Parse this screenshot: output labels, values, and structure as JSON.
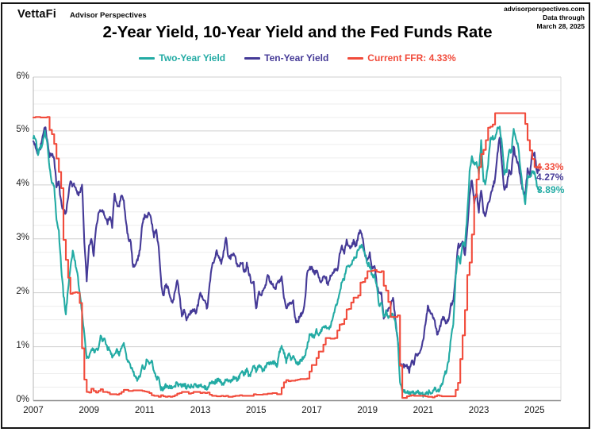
{
  "header": {
    "logo_text": "VettaFi",
    "logo_sub": "Advisor Perspectives",
    "source_line1": "advisorperspectives.com",
    "source_line2": "Data through",
    "source_line3": "March 28, 2025"
  },
  "title": "2-Year Yield, 10-Year Yield and the Fed Funds Rate",
  "chart_data": {
    "type": "line",
    "title": "2-Year Yield, 10-Year Yield and the Fed Funds Rate",
    "xlabel": "",
    "ylabel": "",
    "x_start": "2007-01",
    "x_end": "2025-03",
    "frequency": "monthly",
    "ylim": [
      0,
      6
    ],
    "y_ticks": [
      "0%",
      "1%",
      "2%",
      "3%",
      "4%",
      "5%",
      "6%"
    ],
    "y_tick_values": [
      0,
      1,
      2,
      3,
      4,
      5,
      6
    ],
    "minor_y_step": 0.25,
    "x_ticks": [
      "2007",
      "2009",
      "2011",
      "2013",
      "2015",
      "2017",
      "2019",
      "2021",
      "2023",
      "2025"
    ],
    "x_tick_years": [
      2007,
      2009,
      2011,
      2013,
      2015,
      2017,
      2019,
      2021,
      2023,
      2025
    ],
    "grid": "horizontal-only",
    "legend_position": "top",
    "series": [
      {
        "name": "Two-Year Yield",
        "color": "#23ABA4",
        "style": "line",
        "values": [
          4.88,
          4.85,
          4.57,
          4.67,
          4.77,
          4.98,
          4.82,
          4.31,
          4.01,
          3.97,
          3.34,
          3.12,
          2.48,
          1.97,
          1.62,
          2.05,
          2.45,
          2.77,
          2.57,
          2.36,
          2.0,
          1.61,
          1.21,
          0.82,
          0.81,
          0.98,
          0.93,
          0.93,
          0.93,
          1.18,
          1.12,
          1.12,
          0.96,
          0.95,
          0.8,
          0.87,
          0.93,
          0.86,
          0.96,
          1.06,
          0.83,
          0.72,
          0.62,
          0.52,
          0.44,
          0.38,
          0.45,
          0.62,
          0.61,
          0.77,
          0.7,
          0.73,
          0.56,
          0.41,
          0.41,
          0.23,
          0.21,
          0.28,
          0.25,
          0.26,
          0.24,
          0.28,
          0.34,
          0.27,
          0.29,
          0.31,
          0.24,
          0.27,
          0.26,
          0.28,
          0.27,
          0.26,
          0.27,
          0.27,
          0.25,
          0.23,
          0.3,
          0.36,
          0.34,
          0.36,
          0.4,
          0.34,
          0.29,
          0.38,
          0.39,
          0.33,
          0.42,
          0.43,
          0.39,
          0.46,
          0.51,
          0.49,
          0.57,
          0.45,
          0.53,
          0.64,
          0.55,
          0.62,
          0.64,
          0.54,
          0.61,
          0.69,
          0.71,
          0.7,
          0.71,
          0.64,
          0.88,
          0.98,
          0.9,
          0.73,
          0.88,
          0.77,
          0.82,
          0.73,
          0.67,
          0.74,
          0.77,
          0.84,
          1.0,
          1.2,
          1.21,
          1.2,
          1.31,
          1.24,
          1.3,
          1.34,
          1.36,
          1.33,
          1.38,
          1.55,
          1.7,
          1.84,
          2.03,
          2.19,
          2.27,
          2.49,
          2.51,
          2.52,
          2.64,
          2.64,
          2.81,
          2.87,
          2.86,
          2.68,
          2.54,
          2.5,
          2.31,
          2.33,
          2.16,
          1.75,
          1.85,
          1.57,
          1.65,
          1.55,
          1.61,
          1.62,
          1.45,
          1.16,
          0.33,
          0.2,
          0.17,
          0.18,
          0.13,
          0.14,
          0.13,
          0.15,
          0.16,
          0.13,
          0.11,
          0.12,
          0.15,
          0.16,
          0.15,
          0.25,
          0.19,
          0.21,
          0.28,
          0.48,
          0.56,
          0.73,
          1.18,
          1.44,
          2.28,
          2.7,
          2.53,
          2.92,
          2.89,
          3.45,
          4.22,
          4.51,
          4.38,
          4.41,
          4.21,
          4.81,
          4.06,
          4.04,
          4.4,
          4.87,
          4.88,
          4.85,
          5.03,
          5.07,
          4.73,
          4.23,
          4.27,
          4.64,
          4.59,
          5.04,
          4.87,
          4.71,
          4.29,
          3.91,
          3.66,
          4.16,
          4.13,
          4.25,
          4.22,
          3.99,
          3.89
        ]
      },
      {
        "name": "Ten-Year Yield",
        "color": "#453A97",
        "style": "line",
        "values": [
          4.83,
          4.72,
          4.56,
          4.69,
          4.9,
          5.1,
          4.82,
          4.54,
          4.59,
          4.48,
          3.97,
          4.04,
          3.67,
          3.53,
          3.45,
          3.77,
          4.06,
          3.99,
          3.99,
          3.83,
          3.85,
          4.01,
          2.96,
          2.25,
          2.84,
          3.02,
          2.71,
          3.16,
          3.47,
          3.53,
          3.52,
          3.4,
          3.31,
          3.41,
          3.21,
          3.85,
          3.63,
          3.61,
          3.84,
          3.69,
          3.31,
          2.97,
          2.94,
          2.47,
          2.53,
          2.63,
          2.81,
          3.3,
          3.42,
          3.42,
          3.47,
          3.32,
          3.05,
          3.18,
          2.82,
          2.23,
          1.92,
          2.17,
          2.08,
          1.89,
          1.83,
          1.98,
          2.23,
          1.95,
          1.59,
          1.67,
          1.51,
          1.57,
          1.65,
          1.72,
          1.62,
          1.78,
          2.02,
          1.89,
          1.87,
          1.7,
          2.16,
          2.52,
          2.6,
          2.78,
          2.64,
          2.57,
          2.75,
          3.04,
          2.67,
          2.66,
          2.73,
          2.67,
          2.48,
          2.53,
          2.58,
          2.35,
          2.52,
          2.35,
          2.18,
          2.17,
          1.68,
          2.0,
          1.94,
          2.05,
          2.12,
          2.35,
          2.2,
          2.17,
          2.06,
          2.16,
          2.22,
          2.27,
          1.94,
          1.74,
          1.78,
          1.83,
          1.84,
          1.49,
          1.46,
          1.58,
          1.6,
          1.84,
          2.37,
          2.45,
          2.45,
          2.36,
          2.4,
          2.29,
          2.21,
          2.31,
          2.3,
          2.12,
          2.33,
          2.38,
          2.42,
          2.4,
          2.72,
          2.87,
          2.74,
          2.95,
          2.83,
          2.85,
          2.96,
          2.86,
          3.05,
          3.15,
          3.01,
          2.69,
          2.63,
          2.73,
          2.41,
          2.51,
          2.14,
          2.0,
          2.02,
          1.5,
          1.68,
          1.69,
          1.78,
          1.92,
          1.51,
          1.13,
          0.7,
          0.64,
          0.65,
          0.66,
          0.55,
          0.72,
          0.69,
          0.88,
          0.84,
          0.93,
          1.11,
          1.44,
          1.74,
          1.65,
          1.58,
          1.45,
          1.24,
          1.3,
          1.52,
          1.55,
          1.43,
          1.52,
          1.79,
          1.83,
          2.32,
          2.89,
          2.85,
          2.98,
          2.67,
          3.15,
          3.83,
          4.1,
          3.68,
          3.88,
          3.52,
          3.92,
          3.48,
          3.44,
          3.64,
          3.81,
          3.97,
          4.09,
          4.59,
          4.88,
          4.37,
          3.88,
          3.99,
          4.25,
          4.2,
          4.69,
          4.51,
          4.36,
          4.09,
          3.91,
          3.81,
          4.28,
          4.18,
          4.58,
          4.58,
          4.24,
          4.27
        ]
      },
      {
        "name": "Current FFR: 4.33%",
        "color": "#F14B3B",
        "style": "step",
        "values": [
          5.25,
          5.26,
          5.26,
          5.25,
          5.25,
          5.25,
          5.26,
          5.02,
          4.94,
          4.76,
          4.49,
          4.24,
          3.94,
          2.98,
          2.61,
          2.28,
          1.98,
          2.0,
          2.01,
          2.0,
          1.81,
          0.97,
          0.39,
          0.16,
          0.15,
          0.22,
          0.18,
          0.15,
          0.18,
          0.21,
          0.16,
          0.16,
          0.15,
          0.12,
          0.12,
          0.12,
          0.11,
          0.13,
          0.16,
          0.2,
          0.2,
          0.18,
          0.18,
          0.19,
          0.19,
          0.19,
          0.19,
          0.18,
          0.17,
          0.16,
          0.14,
          0.1,
          0.09,
          0.09,
          0.07,
          0.1,
          0.08,
          0.07,
          0.08,
          0.07,
          0.08,
          0.1,
          0.13,
          0.14,
          0.16,
          0.16,
          0.16,
          0.13,
          0.14,
          0.16,
          0.16,
          0.16,
          0.14,
          0.15,
          0.14,
          0.15,
          0.11,
          0.09,
          0.09,
          0.08,
          0.08,
          0.09,
          0.08,
          0.09,
          0.07,
          0.07,
          0.08,
          0.09,
          0.09,
          0.1,
          0.09,
          0.09,
          0.09,
          0.09,
          0.09,
          0.12,
          0.11,
          0.11,
          0.11,
          0.12,
          0.12,
          0.13,
          0.13,
          0.14,
          0.14,
          0.12,
          0.12,
          0.24,
          0.34,
          0.38,
          0.36,
          0.37,
          0.37,
          0.38,
          0.39,
          0.4,
          0.4,
          0.4,
          0.41,
          0.54,
          0.66,
          0.66,
          0.79,
          0.91,
          0.91,
          1.04,
          1.16,
          1.16,
          1.15,
          1.15,
          1.16,
          1.3,
          1.41,
          1.42,
          1.51,
          1.69,
          1.7,
          1.82,
          1.91,
          1.91,
          1.95,
          2.19,
          2.2,
          2.27,
          2.4,
          2.4,
          2.41,
          2.42,
          2.39,
          2.38,
          2.4,
          2.13,
          2.04,
          1.83,
          1.55,
          1.55,
          1.55,
          1.58,
          0.65,
          0.05,
          0.05,
          0.08,
          0.09,
          0.1,
          0.09,
          0.09,
          0.09,
          0.09,
          0.09,
          0.08,
          0.07,
          0.07,
          0.06,
          0.08,
          0.1,
          0.09,
          0.08,
          0.08,
          0.08,
          0.08,
          0.08,
          0.08,
          0.2,
          0.33,
          0.77,
          1.21,
          1.68,
          2.33,
          2.56,
          3.08,
          3.78,
          4.1,
          4.33,
          4.57,
          4.65,
          4.83,
          5.06,
          5.08,
          5.12,
          5.33,
          5.33,
          5.33,
          5.33,
          5.33,
          5.33,
          5.33,
          5.33,
          5.33,
          5.33,
          5.33,
          5.33,
          5.33,
          5.13,
          4.83,
          4.64,
          4.48,
          4.33,
          4.33,
          4.33
        ]
      }
    ],
    "end_labels": [
      {
        "text": "4.33%",
        "value": 4.33,
        "color": "#F14B3B"
      },
      {
        "text": "4.27%",
        "value": 4.27,
        "color": "#453A97"
      },
      {
        "text": "3.89%",
        "value": 3.89,
        "color": "#23ABA4"
      }
    ]
  }
}
